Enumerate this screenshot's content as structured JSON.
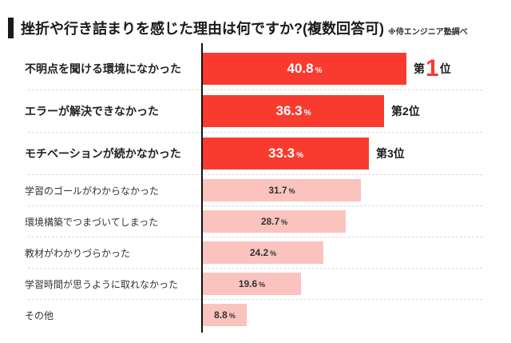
{
  "header": {
    "title": "挫折や行き詰まりを感じた理由は何ですか?(複数回答可)",
    "note": "※侍エンジニア塾調べ"
  },
  "chart_data": {
    "type": "bar",
    "orientation": "horizontal",
    "title": "挫折や行き詰まりを感じた理由は何ですか?(複数回答可)",
    "source_note": "※侍エンジニア塾調べ",
    "unit": "%",
    "xlim": [
      0,
      44
    ],
    "grid": false,
    "legend": "none",
    "categories": [
      "不明点を聞ける環境になかった",
      "エラーが解決できなかった",
      "モチベーションが続かなかった",
      "学習のゴールがわからなかった",
      "環境構築でつまづいてしまった",
      "教材がわかりづらかった",
      "学習時間が思うように取れなかった",
      "その他"
    ],
    "values": [
      40.8,
      36.3,
      33.3,
      31.7,
      28.7,
      24.2,
      19.6,
      8.8
    ],
    "rows": [
      {
        "label": "不明点を聞ける環境になかった",
        "value": 40.8,
        "display_value": "40.8",
        "rank_prefix": "第",
        "rank_number": "1",
        "rank_suffix": "位",
        "emphasis": true
      },
      {
        "label": "エラーが解決できなかった",
        "value": 36.3,
        "display_value": "36.3",
        "rank_prefix": "第",
        "rank_number": "2",
        "rank_suffix": "位",
        "emphasis": true
      },
      {
        "label": "モチベーションが続かなかった",
        "value": 33.3,
        "display_value": "33.3",
        "rank_prefix": "第",
        "rank_number": "3",
        "rank_suffix": "位",
        "emphasis": true
      },
      {
        "label": "学習のゴールがわからなかった",
        "value": 31.7,
        "display_value": "31.7",
        "rank_number": "",
        "emphasis": false
      },
      {
        "label": "環境構築でつまづいてしまった",
        "value": 28.7,
        "display_value": "28.7",
        "rank_number": "",
        "emphasis": false
      },
      {
        "label": "教材がわかりづらかった",
        "value": 24.2,
        "display_value": "24.2",
        "rank_number": "",
        "emphasis": false
      },
      {
        "label": "学習時間が思うように取れなかった",
        "value": 19.6,
        "display_value": "19.6",
        "rank_number": "",
        "emphasis": false
      },
      {
        "label": "その他",
        "value": 8.8,
        "display_value": "8.8",
        "rank_number": "",
        "emphasis": false
      }
    ],
    "colors": {
      "bar_emphasis": "#F93B2F",
      "bar_normal": "#FBC3BD",
      "value_text_emphasis": "#FFFFFF",
      "value_text_normal": "#333333",
      "rank1_number": "#F93B2F",
      "axis_line": "#111111",
      "separator": "#D9D9D9",
      "title_block": "#1A1A1A"
    }
  }
}
